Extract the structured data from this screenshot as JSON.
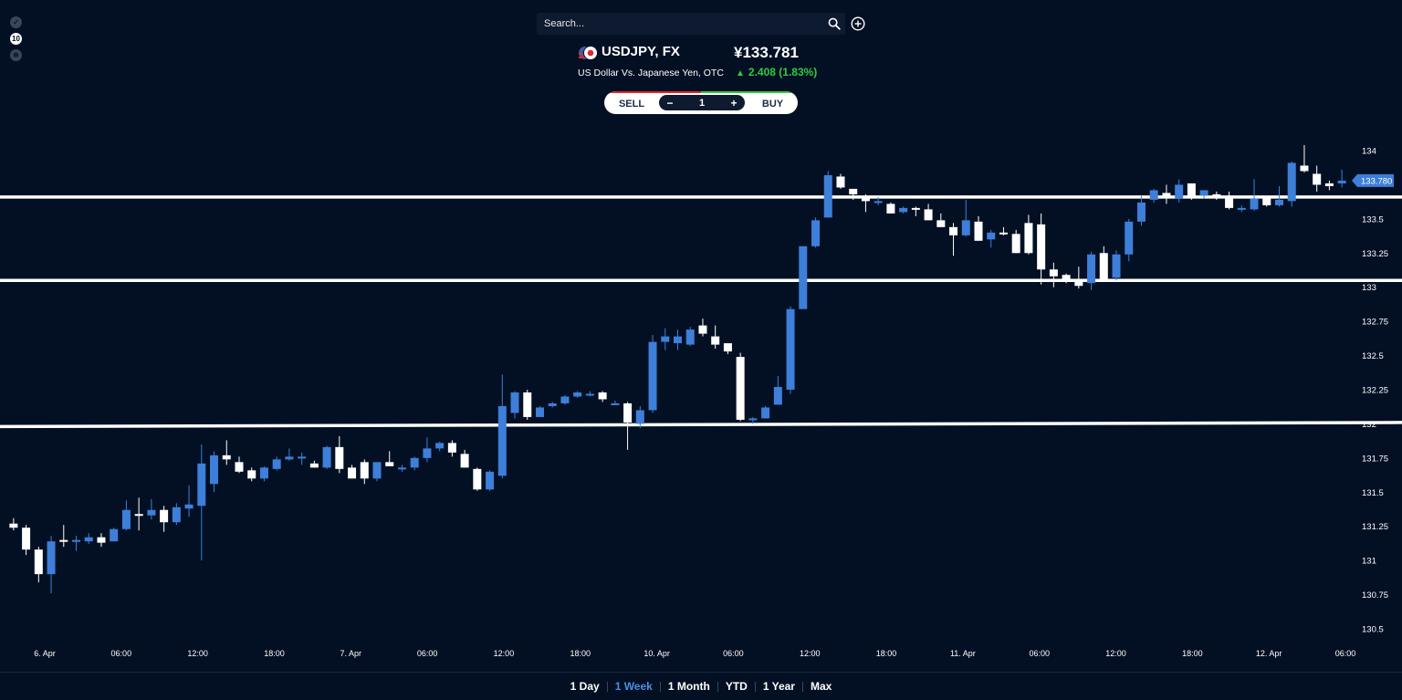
{
  "search": {
    "placeholder": "Search..."
  },
  "icons": {
    "search": "search-icon",
    "add": "add-circle-icon",
    "flag": "us-jp-flag-icon"
  },
  "instrument": {
    "title": "USDJPY, FX",
    "description": "US Dollar Vs. Japanese Yen, OTC",
    "price": "¥133.781",
    "change": "2.408 (1.83%)",
    "change_color": "#2ecc40"
  },
  "trade": {
    "sell_label": "SELL",
    "buy_label": "BUY",
    "quantity": "1",
    "minus": "−",
    "plus": "+"
  },
  "ranges": [
    {
      "label": "1 Day",
      "active": false
    },
    {
      "label": "1 Week",
      "active": true
    },
    {
      "label": "1 Month",
      "active": false
    },
    {
      "label": "YTD",
      "active": false
    },
    {
      "label": "1 Year",
      "active": false
    },
    {
      "label": "Max",
      "active": false
    }
  ],
  "chart_data": {
    "type": "candlestick",
    "y_ticks": [
      "134",
      "133.5",
      "133.25",
      "133",
      "132.75",
      "132.5",
      "132.25",
      "132",
      "131.75",
      "131.5",
      "131.25",
      "131",
      "130.75",
      "130.5"
    ],
    "y_tick_values": [
      134,
      133.5,
      133.25,
      133,
      132.75,
      132.5,
      132.25,
      132,
      131.75,
      131.5,
      131.25,
      131,
      130.75,
      130.5
    ],
    "ylim": [
      130.46,
      134.06
    ],
    "x_ticks": [
      "6. Apr",
      "06:00",
      "12:00",
      "18:00",
      "7. Apr",
      "06:00",
      "12:00",
      "18:00",
      "10. Apr",
      "06:00",
      "12:00",
      "18:00",
      "11. Apr",
      "06:00",
      "12:00",
      "18:00",
      "12. Apr",
      "06:00"
    ],
    "last_price_label": "133.780",
    "last_price": 133.78,
    "up_color": "#3d7fd9",
    "down_color": "#ffffff",
    "horizontal_lines": [
      {
        "y_start": 133.66,
        "y_end": 133.66
      },
      {
        "y_start": 133.05,
        "y_end": 133.05
      },
      {
        "y_start": 131.98,
        "y_end": 132.01
      }
    ],
    "candles": [
      [
        131.27,
        131.24,
        131.31,
        131.22
      ],
      [
        131.24,
        131.08,
        131.26,
        131.04
      ],
      [
        131.08,
        130.9,
        131.1,
        130.84
      ],
      [
        130.9,
        131.14,
        131.18,
        130.76
      ],
      [
        131.15,
        131.14,
        131.26,
        131.1
      ],
      [
        131.14,
        131.15,
        131.18,
        131.07
      ],
      [
        131.14,
        131.17,
        131.2,
        131.12
      ],
      [
        131.17,
        131.13,
        131.2,
        131.1
      ],
      [
        131.14,
        131.23,
        131.24,
        131.14
      ],
      [
        131.23,
        131.37,
        131.44,
        131.22
      ],
      [
        131.34,
        131.33,
        131.46,
        131.22
      ],
      [
        131.33,
        131.37,
        131.45,
        131.3
      ],
      [
        131.37,
        131.28,
        131.4,
        131.21
      ],
      [
        131.28,
        131.39,
        131.42,
        131.26
      ],
      [
        131.38,
        131.41,
        131.55,
        131.32
      ],
      [
        131.4,
        131.71,
        131.85,
        131.0
      ],
      [
        131.56,
        131.77,
        131.8,
        131.5
      ],
      [
        131.77,
        131.74,
        131.88,
        131.7
      ],
      [
        131.72,
        131.65,
        131.76,
        131.64
      ],
      [
        131.66,
        131.6,
        131.68,
        131.58
      ],
      [
        131.6,
        131.68,
        131.69,
        131.58
      ],
      [
        131.67,
        131.74,
        131.76,
        131.66
      ],
      [
        131.74,
        131.76,
        131.82,
        131.73
      ],
      [
        131.76,
        131.76,
        131.79,
        131.7
      ],
      [
        131.71,
        131.68,
        131.73,
        131.68
      ],
      [
        131.68,
        131.83,
        131.84,
        131.67
      ],
      [
        131.83,
        131.67,
        131.91,
        131.64
      ],
      [
        131.68,
        131.6,
        131.7,
        131.6
      ],
      [
        131.72,
        131.6,
        131.74,
        131.56
      ],
      [
        131.6,
        131.72,
        131.72,
        131.58
      ],
      [
        131.72,
        131.69,
        131.8,
        131.69
      ],
      [
        131.68,
        131.68,
        131.7,
        131.65
      ],
      [
        131.68,
        131.75,
        131.76,
        131.66
      ],
      [
        131.75,
        131.82,
        131.9,
        131.72
      ],
      [
        131.82,
        131.86,
        131.87,
        131.8
      ],
      [
        131.86,
        131.79,
        131.88,
        131.76
      ],
      [
        131.78,
        131.68,
        131.81,
        131.68
      ],
      [
        131.67,
        131.52,
        131.68,
        131.51
      ],
      [
        131.52,
        131.65,
        131.66,
        131.51
      ],
      [
        131.62,
        132.13,
        132.36,
        131.6
      ],
      [
        132.08,
        132.23,
        132.24,
        132.04
      ],
      [
        132.23,
        132.05,
        132.25,
        132.03
      ],
      [
        132.05,
        132.12,
        132.13,
        132.05
      ],
      [
        132.13,
        132.15,
        132.16,
        132.12
      ],
      [
        132.15,
        132.2,
        132.21,
        132.14
      ],
      [
        132.2,
        132.23,
        132.24,
        132.19
      ],
      [
        132.22,
        132.22,
        132.24,
        132.2
      ],
      [
        132.23,
        132.18,
        132.24,
        132.16
      ],
      [
        132.15,
        132.15,
        132.17,
        132.14
      ],
      [
        132.15,
        132.01,
        132.16,
        131.81
      ],
      [
        132.0,
        132.1,
        132.13,
        131.97
      ],
      [
        132.1,
        132.6,
        132.65,
        132.08
      ],
      [
        132.6,
        132.64,
        132.7,
        132.54
      ],
      [
        132.59,
        132.64,
        132.69,
        132.54
      ],
      [
        132.58,
        132.69,
        132.71,
        132.57
      ],
      [
        132.72,
        132.66,
        132.77,
        132.64
      ],
      [
        132.64,
        132.58,
        132.72,
        132.55
      ],
      [
        132.59,
        132.53,
        132.59,
        132.51
      ],
      [
        132.49,
        132.03,
        132.52,
        132.02
      ],
      [
        132.03,
        132.04,
        132.05,
        132.0
      ],
      [
        132.04,
        132.12,
        132.13,
        132.04
      ],
      [
        132.14,
        132.27,
        132.35,
        132.14
      ],
      [
        132.25,
        132.84,
        132.86,
        132.22
      ],
      [
        132.84,
        133.3,
        133.3,
        133.24
      ],
      [
        133.3,
        133.49,
        133.51,
        133.29
      ],
      [
        133.51,
        133.82,
        133.85,
        133.51
      ],
      [
        133.81,
        133.73,
        133.83,
        133.72
      ],
      [
        133.72,
        133.68,
        133.72,
        133.64
      ],
      [
        133.67,
        133.63,
        133.68,
        133.55
      ],
      [
        133.63,
        133.63,
        133.66,
        133.6
      ],
      [
        133.61,
        133.54,
        133.62,
        133.54
      ],
      [
        133.55,
        133.58,
        133.59,
        133.54
      ],
      [
        133.58,
        133.57,
        133.59,
        133.52
      ],
      [
        133.57,
        133.49,
        133.61,
        133.49
      ],
      [
        133.49,
        133.44,
        133.54,
        133.44
      ],
      [
        133.44,
        133.38,
        133.47,
        133.23
      ],
      [
        133.38,
        133.49,
        133.64,
        133.37
      ],
      [
        133.48,
        133.34,
        133.52,
        133.34
      ],
      [
        133.35,
        133.4,
        133.42,
        133.29
      ],
      [
        133.4,
        133.39,
        133.44,
        133.38
      ],
      [
        133.39,
        133.25,
        133.42,
        133.25
      ],
      [
        133.47,
        133.25,
        133.53,
        133.24
      ],
      [
        133.46,
        133.13,
        133.54,
        133.02
      ],
      [
        133.13,
        133.08,
        133.18,
        133.0
      ],
      [
        133.09,
        133.06,
        133.1,
        133.03
      ],
      [
        133.05,
        133.01,
        133.15,
        132.99
      ],
      [
        133.03,
        133.24,
        133.26,
        132.98
      ],
      [
        133.25,
        133.06,
        133.3,
        133.04
      ],
      [
        133.07,
        133.24,
        133.27,
        133.05
      ],
      [
        133.24,
        133.48,
        133.5,
        133.19
      ],
      [
        133.48,
        133.62,
        133.67,
        133.45
      ],
      [
        133.64,
        133.71,
        133.72,
        133.62
      ],
      [
        133.69,
        133.65,
        133.75,
        133.61
      ],
      [
        133.65,
        133.75,
        133.79,
        133.62
      ],
      [
        133.76,
        133.67,
        133.76,
        133.64
      ],
      [
        133.67,
        133.71,
        133.71,
        133.65
      ],
      [
        133.68,
        133.67,
        133.7,
        133.64
      ],
      [
        133.67,
        133.58,
        133.7,
        133.57
      ],
      [
        133.57,
        133.58,
        133.6,
        133.55
      ],
      [
        133.57,
        133.65,
        133.79,
        133.56
      ],
      [
        133.66,
        133.6,
        133.66,
        133.59
      ],
      [
        133.6,
        133.64,
        133.74,
        133.59
      ],
      [
        133.63,
        133.91,
        133.92,
        133.59
      ],
      [
        133.89,
        133.85,
        134.04,
        133.84
      ],
      [
        133.83,
        133.75,
        133.89,
        133.7
      ],
      [
        133.76,
        133.74,
        133.78,
        133.71
      ],
      [
        133.76,
        133.78,
        133.86,
        133.73
      ]
    ]
  }
}
